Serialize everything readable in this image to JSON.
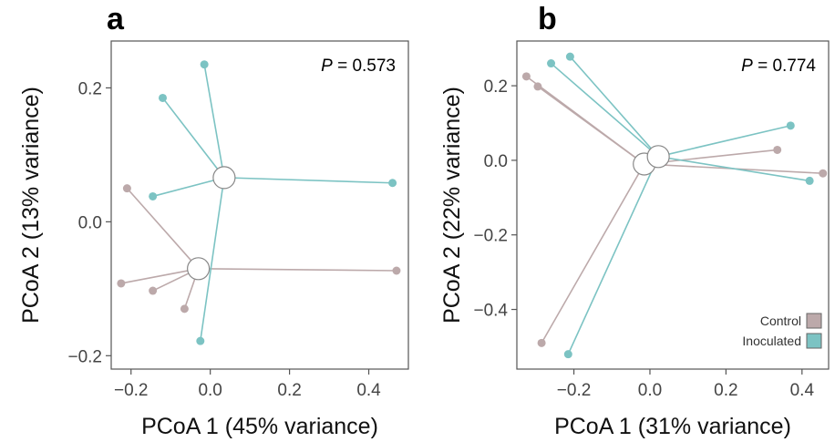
{
  "colors": {
    "control": "#bca9aa",
    "inoculated": "#7cc3c3",
    "frame": "#555555",
    "tick_text": "#444444"
  },
  "legend": {
    "control_label": "Control",
    "inoculated_label": "Inoculated",
    "placement": "bottom-right of panel b"
  },
  "chart_data": [
    {
      "type": "scatter",
      "panel": "a",
      "xlabel": "PCoA 1 (45% variance)",
      "ylabel": "PCoA 2 (13% variance)",
      "annotation": {
        "italic": "P",
        "text": " = 0.573"
      },
      "xlim": [
        -0.25,
        0.5
      ],
      "ylim": [
        -0.22,
        0.27
      ],
      "xticks": [
        -0.2,
        0.0,
        0.2,
        0.4
      ],
      "xtick_labels": [
        "−0.2",
        "0.0",
        "0.2",
        "0.4"
      ],
      "yticks": [
        -0.2,
        0.0,
        0.2
      ],
      "ytick_labels": [
        "−0.2",
        "0.0",
        "0.2"
      ],
      "grid": false,
      "series": [
        {
          "group": "control",
          "centroid": [
            -0.03,
            -0.07
          ],
          "x": [
            -0.21,
            -0.225,
            -0.145,
            -0.065,
            0.47
          ],
          "y": [
            0.05,
            -0.092,
            -0.103,
            -0.13,
            -0.073
          ]
        },
        {
          "group": "inoculated",
          "centroid": [
            0.035,
            0.066
          ],
          "x": [
            -0.015,
            -0.12,
            -0.145,
            -0.025,
            0.46
          ],
          "y": [
            0.235,
            0.185,
            0.038,
            -0.178,
            0.058
          ]
        }
      ]
    },
    {
      "type": "scatter",
      "panel": "b",
      "xlabel": "PCoA 1 (31% variance)",
      "ylabel": "PCoA 2 (22% variance)",
      "annotation": {
        "italic": "P",
        "text": " = 0.774"
      },
      "xlim": [
        -0.35,
        0.47
      ],
      "ylim": [
        -0.56,
        0.32
      ],
      "xticks": [
        -0.2,
        0.0,
        0.2,
        0.4
      ],
      "xtick_labels": [
        "−0.2",
        "0.0",
        "0.2",
        "0.4"
      ],
      "yticks": [
        -0.4,
        -0.2,
        0.0,
        0.2
      ],
      "ytick_labels": [
        "−0.4",
        "−0.2",
        "0.0",
        "0.2"
      ],
      "grid": false,
      "series": [
        {
          "group": "control",
          "centroid": [
            -0.015,
            -0.01
          ],
          "x": [
            -0.325,
            -0.295,
            0.335,
            0.455,
            -0.285
          ],
          "y": [
            0.225,
            0.198,
            0.028,
            -0.035,
            -0.49
          ]
        },
        {
          "group": "inoculated",
          "centroid": [
            0.022,
            0.01
          ],
          "x": [
            -0.26,
            -0.21,
            0.37,
            0.42,
            -0.215
          ],
          "y": [
            0.26,
            0.278,
            0.093,
            -0.055,
            -0.52
          ]
        }
      ]
    }
  ]
}
